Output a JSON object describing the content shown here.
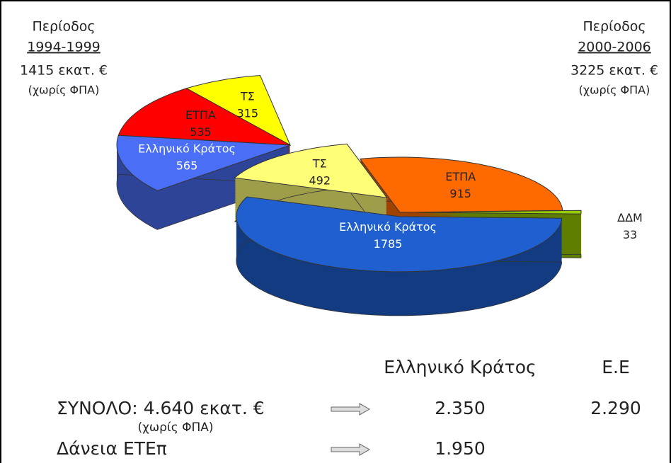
{
  "chart_data": [
    {
      "type": "pie",
      "title": "Περίοδος",
      "subtitle": "1994-1999",
      "total_label": "1415 εκατ. €",
      "note": "(χωρίς ΦΠΑ)",
      "categories": [
        "Ελληνικό Κράτος",
        "ΕΤΠΑ",
        "ΤΣ"
      ],
      "values": [
        565,
        535,
        315
      ],
      "colors": [
        "#4a6ef5",
        "#ff0000",
        "#ffff00"
      ]
    },
    {
      "type": "pie",
      "title": "Περίοδος",
      "subtitle": "2000-2006",
      "total_label": "3225 εκατ. €",
      "note": "(χωρίς ΦΠΑ)",
      "categories": [
        "Ελληνικό Κράτος",
        "ΕΤΠΑ",
        "ΤΣ",
        "ΔΔΜ"
      ],
      "values": [
        1785,
        915,
        492,
        33
      ],
      "colors": [
        "#1f5fd0",
        "#ff6a00",
        "#ffff77",
        "#99cc00"
      ]
    }
  ],
  "summary": {
    "columns": [
      "Ελληνικό Κράτος",
      "Ε.Ε"
    ],
    "rows": [
      {
        "label": "ΣΥΝΟΛΟ: 4.640 εκατ. €",
        "note": "(χωρίς ΦΠΑ)",
        "values": [
          "2.350",
          "2.290"
        ]
      },
      {
        "label": "Δάνεια ΕΤΕπ",
        "values": [
          "1.950"
        ]
      }
    ]
  }
}
